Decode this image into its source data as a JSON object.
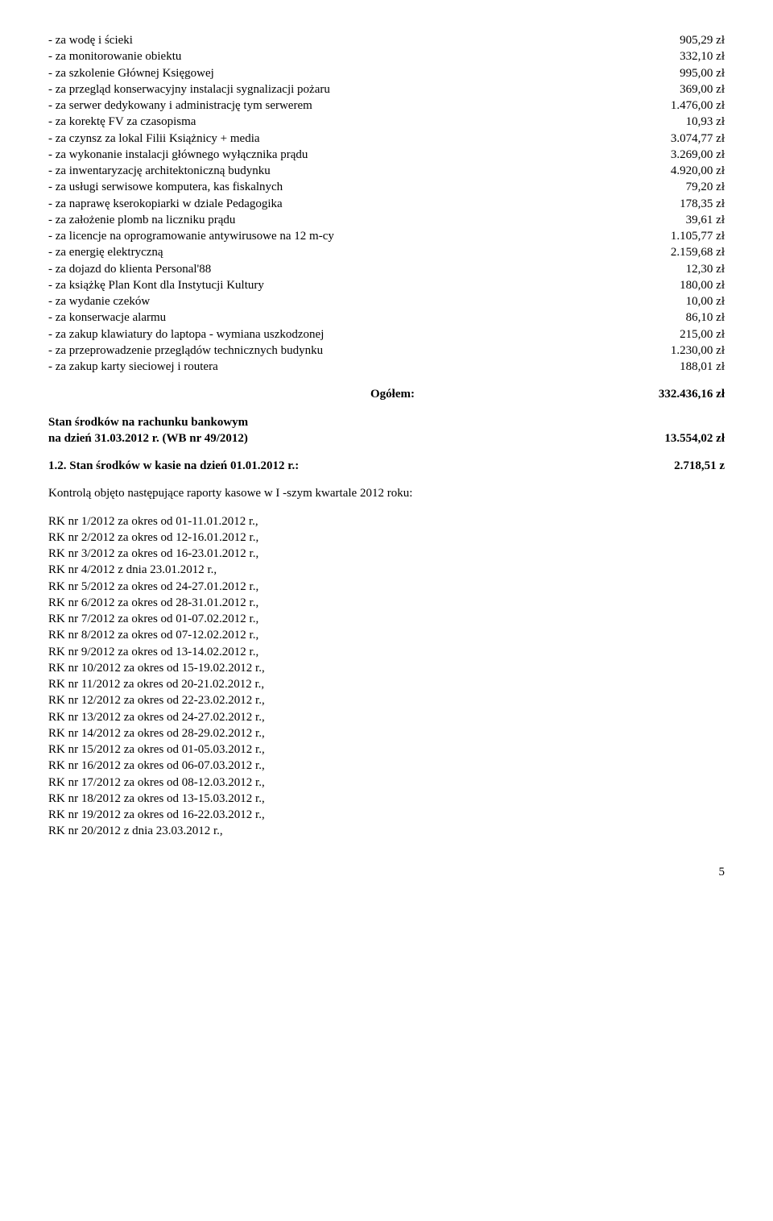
{
  "expenses": [
    {
      "label": "- za wodę i ścieki",
      "value": "905,29 zł"
    },
    {
      "label": "- za monitorowanie obiektu",
      "value": "332,10 zł"
    },
    {
      "label": "- za szkolenie Głównej Księgowej",
      "value": "995,00 zł"
    },
    {
      "label": "- za przegląd konserwacyjny instalacji sygnalizacji pożaru",
      "value": "369,00 zł"
    },
    {
      "label": "- za serwer dedykowany i administrację tym serwerem",
      "value": "1.476,00 zł"
    },
    {
      "label": "- za korektę FV za czasopisma",
      "value": "10,93 zł"
    },
    {
      "label": "- za czynsz za lokal Filii Książnicy + media",
      "value": "3.074,77 zł"
    },
    {
      "label": "- za wykonanie instalacji głównego wyłącznika prądu",
      "value": "3.269,00 zł"
    },
    {
      "label": "- za inwentaryzację architektoniczną budynku",
      "value": "4.920,00 zł"
    },
    {
      "label": "- za usługi serwisowe komputera, kas fiskalnych",
      "value": "79,20 zł"
    },
    {
      "label": "- za naprawę kserokopiarki w dziale Pedagogika",
      "value": "178,35 zł"
    },
    {
      "label": "- za założenie plomb na liczniku prądu",
      "value": "39,61 zł"
    },
    {
      "label": "- za licencje na oprogramowanie antywirusowe na 12 m-cy",
      "value": "1.105,77 zł"
    },
    {
      "label": "- za energię elektryczną",
      "value": "2.159,68 zł"
    },
    {
      "label": "- za dojazd do klienta Personal'88",
      "value": "12,30 zł"
    },
    {
      "label": "- za książkę Plan Kont dla Instytucji Kultury",
      "value": "180,00 zł"
    },
    {
      "label": "- za wydanie czeków",
      "value": "10,00 zł"
    },
    {
      "label": "- za konserwacje alarmu",
      "value": "86,10 zł"
    },
    {
      "label": "- za zakup klawiatury do laptopa - wymiana uszkodzonej",
      "value": "215,00 zł"
    },
    {
      "label": "- za przeprowadzenie przeglądów technicznych budynku",
      "value": "1.230,00 zł"
    },
    {
      "label": "- za zakup karty sieciowej i routera",
      "value": "188,01 zł"
    }
  ],
  "total": {
    "label": "Ogółem:",
    "value": "332.436,16 zł"
  },
  "bank_balance": {
    "line1": "Stan środków na rachunku bankowym",
    "line2_label": "na dzień 31.03.2012 r. (WB nr 49/2012)",
    "line2_value": "13.554,02 zł"
  },
  "cash_balance": {
    "label": "1.2. Stan środków w kasie na dzień 01.01.2012 r.:",
    "value": "2.718,51  z"
  },
  "intro": "Kontrolą objęto następujące raporty kasowe w I -szym kwartale 2012 roku:",
  "rk_list": [
    "RK nr 1/2012 za okres od 01-11.01.2012 r.,",
    "RK nr 2/2012 za okres od 12-16.01.2012 r.,",
    "RK nr 3/2012 za okres od 16-23.01.2012 r.,",
    "RK nr 4/2012 z dnia 23.01.2012 r.,",
    "RK nr 5/2012 za okres od 24-27.01.2012 r.,",
    "RK nr 6/2012 za okres od 28-31.01.2012 r.,",
    "RK nr 7/2012 za okres od 01-07.02.2012 r.,",
    "RK nr 8/2012 za okres od 07-12.02.2012 r.,",
    "RK nr 9/2012 za okres od 13-14.02.2012 r.,",
    "RK nr 10/2012 za okres od 15-19.02.2012 r.,",
    "RK nr 11/2012 za okres od 20-21.02.2012 r.,",
    "RK nr 12/2012 za okres od 22-23.02.2012 r.,",
    "RK nr 13/2012 za okres od 24-27.02.2012 r.,",
    "RK nr 14/2012 za okres od 28-29.02.2012 r.,",
    "RK nr 15/2012 za okres od 01-05.03.2012 r.,",
    "RK nr 16/2012 za okres od 06-07.03.2012 r.,",
    "RK nr 17/2012 za okres od 08-12.03.2012 r.,",
    "RK nr 18/2012 za okres od 13-15.03.2012 r.,",
    "RK nr 19/2012 za okres od 16-22.03.2012 r.,",
    "RK nr 20/2012 z dnia 23.03.2012 r.,"
  ],
  "page_number": "5"
}
